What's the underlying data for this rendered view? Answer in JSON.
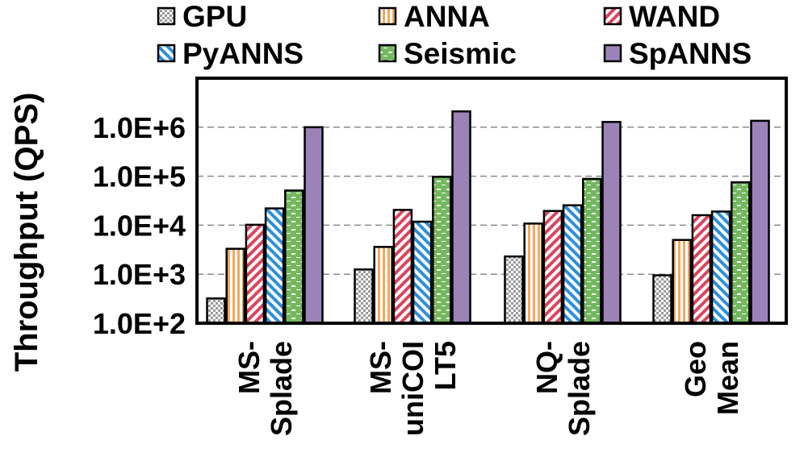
{
  "chart_data": {
    "type": "bar",
    "title": "",
    "xlabel": "",
    "ylabel": "Throughput (QPS)",
    "yscale": "log",
    "ylim": [
      100,
      10000000
    ],
    "grid": true,
    "legend_position": "top",
    "ytick_values": [
      100,
      1000,
      10000,
      100000,
      1000000
    ],
    "ytick_labels": [
      "1.0E+2",
      "1.0E+3",
      "1.0E+4",
      "1.0E+5",
      "1.0E+6"
    ],
    "categories": [
      "MS-Splade",
      "MS-uniCOILT5",
      "NQ-Splade",
      "Geo Mean"
    ],
    "category_label_lines": [
      [
        "MS-",
        "Splade"
      ],
      [
        "MS-",
        "uniCOI",
        "LT5"
      ],
      [
        "NQ-",
        "Splade"
      ],
      [
        "Geo",
        "Mean"
      ]
    ],
    "series": [
      {
        "name": "GPU",
        "values": [
          320,
          1250,
          2300,
          950
        ],
        "color": "#9b9b9b",
        "pattern": "checker"
      },
      {
        "name": "ANNA",
        "values": [
          3300,
          3600,
          10800,
          5000
        ],
        "color": "#f0a860",
        "pattern": "vertical"
      },
      {
        "name": "WAND",
        "values": [
          10200,
          20500,
          19500,
          16000
        ],
        "color": "#d9455f",
        "pattern": "diagonal-right"
      },
      {
        "name": "PyANNS",
        "values": [
          22000,
          11800,
          25500,
          19000
        ],
        "color": "#2f8fd8",
        "pattern": "diagonal-left"
      },
      {
        "name": "Seismic",
        "values": [
          51000,
          97000,
          88000,
          75000
        ],
        "color": "#74b85e",
        "pattern": "dashes"
      },
      {
        "name": "SpANNS",
        "values": [
          1000000,
          2100000,
          1280000,
          1350000
        ],
        "color": "#9b83b8",
        "pattern": "solid"
      }
    ]
  }
}
